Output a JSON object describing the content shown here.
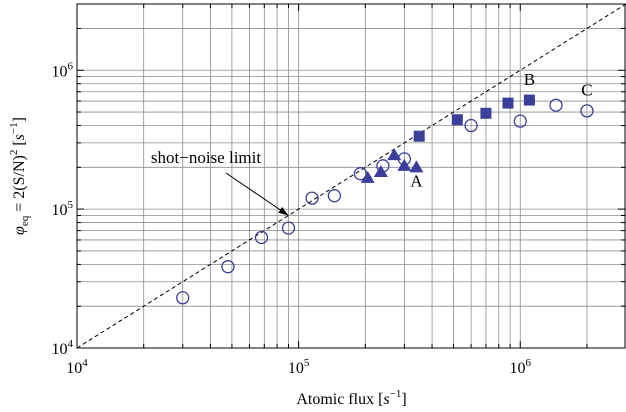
{
  "chart_data": {
    "type": "scatter",
    "x_scale": "log",
    "y_scale": "log",
    "xlim": [
      10000,
      3000000
    ],
    "ylim": [
      10000,
      3000000
    ],
    "grid": true,
    "xlabel": {
      "text": "Atomic flux [",
      "unit": "s",
      "exp": "−1",
      "close": "]"
    },
    "ylabel": {
      "phi": "φ",
      "sub": "eq",
      "eq": " = 2(S/N)",
      "exp1": "2",
      "mid": " [",
      "unit": "s",
      "exp2": "−1",
      "close": "]"
    },
    "x_ticks": [
      {
        "value": 10000,
        "base": "10",
        "exp": "4"
      },
      {
        "value": 100000,
        "base": "10",
        "exp": "5"
      },
      {
        "value": 1000000,
        "base": "10",
        "exp": "6"
      }
    ],
    "y_ticks": [
      {
        "value": 10000,
        "base": "10",
        "exp": "4"
      },
      {
        "value": 100000,
        "base": "10",
        "exp": "5"
      },
      {
        "value": 1000000,
        "base": "10",
        "exp": "6"
      }
    ],
    "colors": {
      "marker": "#3b3e9a",
      "grid": "#8c8c8c",
      "axis": "#000000"
    },
    "series": [
      {
        "marker": "open-circle",
        "x": [
          30000,
          48000,
          68000,
          90000,
          115000,
          145000,
          190000,
          240000,
          300000,
          600000,
          1000000,
          1450000,
          2000000
        ],
        "y": [
          23000,
          38500,
          62500,
          73000,
          120000,
          125000,
          180000,
          205000,
          230000,
          400000,
          430000,
          560000,
          510000
        ]
      },
      {
        "marker": "filled-triangle",
        "x": [
          205000,
          235000,
          270000,
          300000,
          340000
        ],
        "y": [
          168000,
          185000,
          245000,
          205000,
          200000
        ]
      },
      {
        "marker": "filled-square",
        "x": [
          350000,
          520000,
          700000,
          880000,
          1100000
        ],
        "y": [
          335000,
          440000,
          490000,
          580000,
          610000
        ]
      }
    ],
    "reference_line": {
      "label": "shot−noise limit",
      "style": "dashed",
      "slope": 1
    },
    "annotations": [
      {
        "text": "A",
        "x": 340000,
        "y": 145000
      },
      {
        "text": "B",
        "x": 1100000,
        "y": 780000
      },
      {
        "text": "C",
        "x": 2000000,
        "y": 660000
      }
    ],
    "arrow_target": {
      "x": 90000,
      "y": 90000
    }
  }
}
